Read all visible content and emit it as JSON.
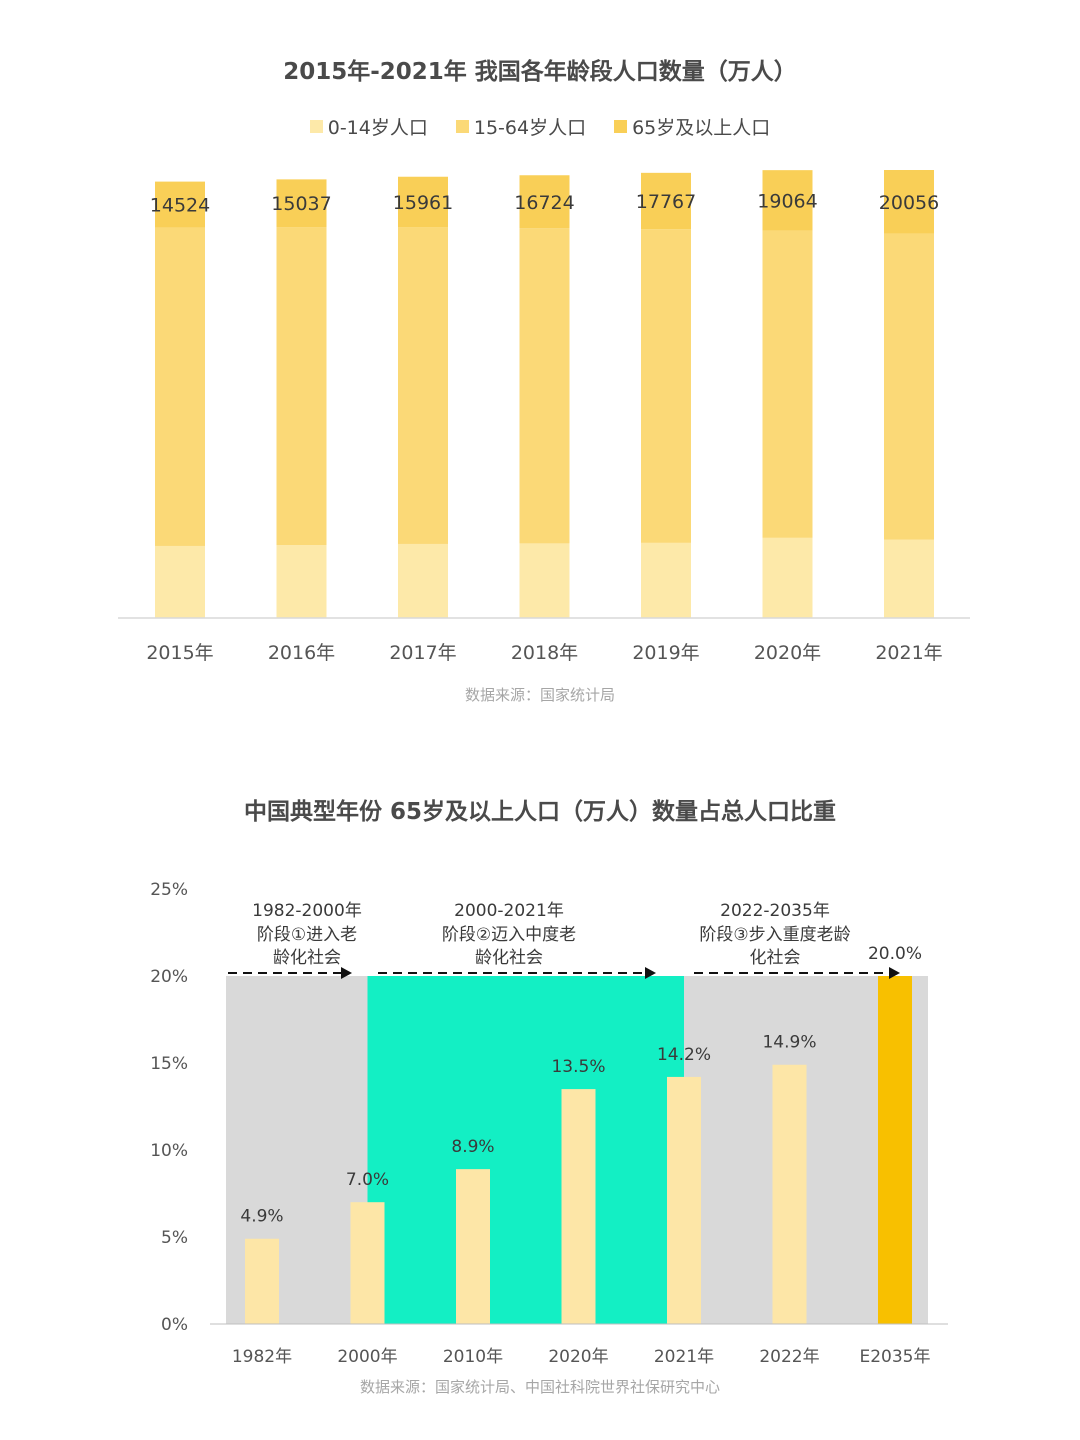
{
  "chart_data": [
    {
      "type": "bar",
      "stacked": true,
      "title": "2015年-2021年 我国各年龄段人口数量（万人）",
      "categories": [
        "2015年",
        "2016年",
        "2017年",
        "2018年",
        "2019年",
        "2020年",
        "2021年"
      ],
      "series": [
        {
          "name": "0-14岁人口",
          "values": [
            22715,
            23008,
            23348,
            23523,
            23689,
            25277,
            24678
          ],
          "color": "#fde9a9"
        },
        {
          "name": "15-64岁人口",
          "values": [
            100361,
            100260,
            99829,
            99357,
            98910,
            96871,
            96526
          ],
          "color": "#fbd977"
        },
        {
          "name": "65岁及以上人口",
          "values": [
            14524,
            15037,
            15961,
            16724,
            17767,
            19064,
            20056
          ],
          "color": "#f9cf57"
        }
      ],
      "data_labels_series": "65岁及以上人口",
      "ylim": [
        0,
        141260
      ],
      "y_axis_visible": false,
      "grid": false,
      "legend": "top-center",
      "source": "数据来源：国家统计局"
    },
    {
      "type": "bar",
      "title": "中国典型年份 65岁及以上人口（万人）数量占总人口比重",
      "categories": [
        "1982年",
        "2000年",
        "2010年",
        "2020年",
        "2021年",
        "2022年",
        "E2035年"
      ],
      "values": [
        4.9,
        7.0,
        8.9,
        13.5,
        14.2,
        14.9,
        20.0
      ],
      "value_labels": [
        "4.9%",
        "7.0%",
        "8.9%",
        "13.5%",
        "14.2%",
        "14.9%",
        "20.0%"
      ],
      "bar_colors": [
        "#fde6a7",
        "#fde6a7",
        "#fde6a7",
        "#fde6a7",
        "#fde6a7",
        "#fde6a7",
        "#f8c000"
      ],
      "y_ticks": [
        "0%",
        "5%",
        "10%",
        "15%",
        "20%",
        "25%"
      ],
      "ylim": [
        0,
        25
      ],
      "grid": false,
      "phases": [
        {
          "line1": "1982-2000年",
          "line2": "阶段①进入老",
          "line3": "龄化社会",
          "from": "1982年",
          "to": "2000年",
          "color": "#d9d9d9"
        },
        {
          "line1": "2000-2021年",
          "line2": "阶段②迈入中度老",
          "line3": "龄化社会",
          "from": "2000年",
          "to": "2021年",
          "color": "#13efc4"
        },
        {
          "line1": "2022-2035年",
          "line2": "阶段③步入重度老龄",
          "line3": "化社会",
          "from": "2021年",
          "to": "E2035年",
          "color": "#d9d9d9"
        }
      ],
      "phase_band_top": 20,
      "source": "数据来源：国家统计局、中国社科院世界社保研究中心"
    }
  ]
}
